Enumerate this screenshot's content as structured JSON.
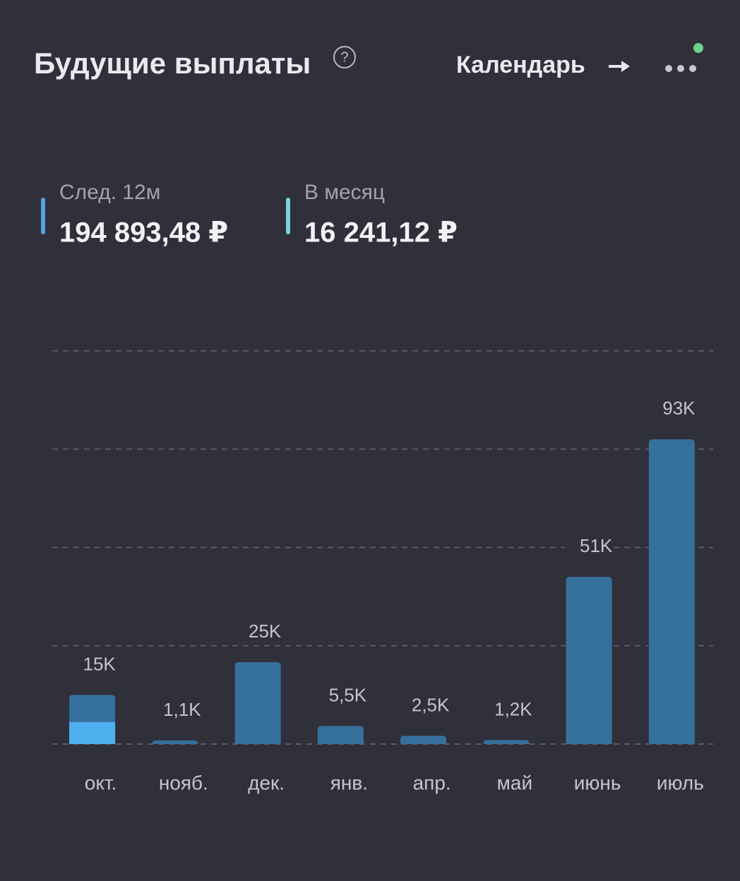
{
  "header": {
    "title": "Будущие выплаты",
    "help": "?",
    "link": "Календарь"
  },
  "stats": [
    {
      "label": "След. 12м",
      "value": "194 893,48 ₽"
    },
    {
      "label": "В месяц",
      "value": "16 241,12 ₽"
    }
  ],
  "chart_data": {
    "type": "bar",
    "categories": [
      "окт.",
      "нояб.",
      "дек.",
      "янв.",
      "апр.",
      "май",
      "июнь",
      "июль"
    ],
    "values": [
      15000,
      1100,
      25000,
      5500,
      2500,
      1200,
      51000,
      93000
    ],
    "value_labels": [
      "15K",
      "1,1K",
      "25K",
      "5,5K",
      "2,5K",
      "1,2K",
      "51K",
      "93K"
    ],
    "color": "#36719d",
    "paid_values": [
      6700,
      null,
      null,
      null,
      null,
      null,
      null,
      null
    ],
    "paid_color": "#4fb0f0",
    "ylim": [
      0,
      120000
    ],
    "yticks": [
      0,
      30000,
      60000,
      90000,
      120000
    ],
    "grid": true
  }
}
